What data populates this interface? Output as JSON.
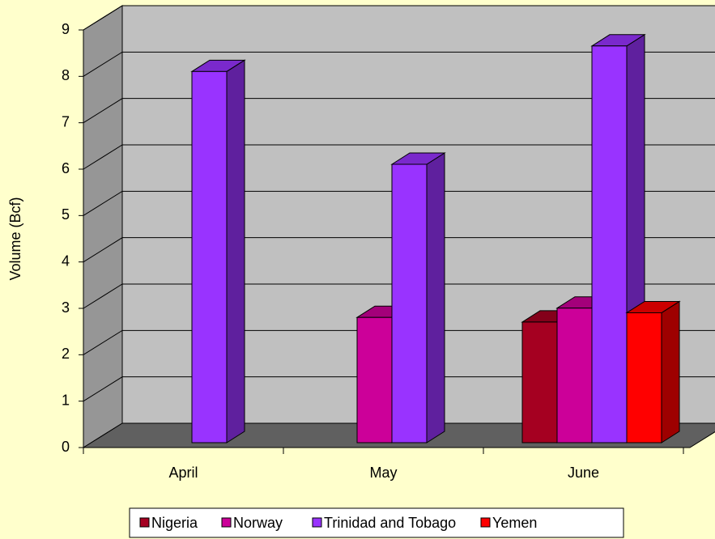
{
  "chart_data": {
    "type": "bar3d",
    "y_label": "Volume (Bcf)",
    "categories": [
      "April",
      "May",
      "June"
    ],
    "series": [
      {
        "name": "Nigeria",
        "color": "#a50021",
        "values": [
          null,
          null,
          2.6
        ]
      },
      {
        "name": "Norway",
        "color": "#cc0099",
        "values": [
          null,
          2.7,
          2.9
        ]
      },
      {
        "name": "Trinidad and Tobago",
        "color": "#9933ff",
        "values": [
          8.0,
          6.0,
          8.55
        ]
      },
      {
        "name": "Yemen",
        "color": "#ff0000",
        "values": [
          null,
          null,
          2.8
        ]
      }
    ],
    "ylim": [
      0,
      9
    ],
    "yticks": [
      0,
      1,
      2,
      3,
      4,
      5,
      6,
      7,
      8,
      9
    ],
    "grid": true,
    "legend": "bottom"
  }
}
